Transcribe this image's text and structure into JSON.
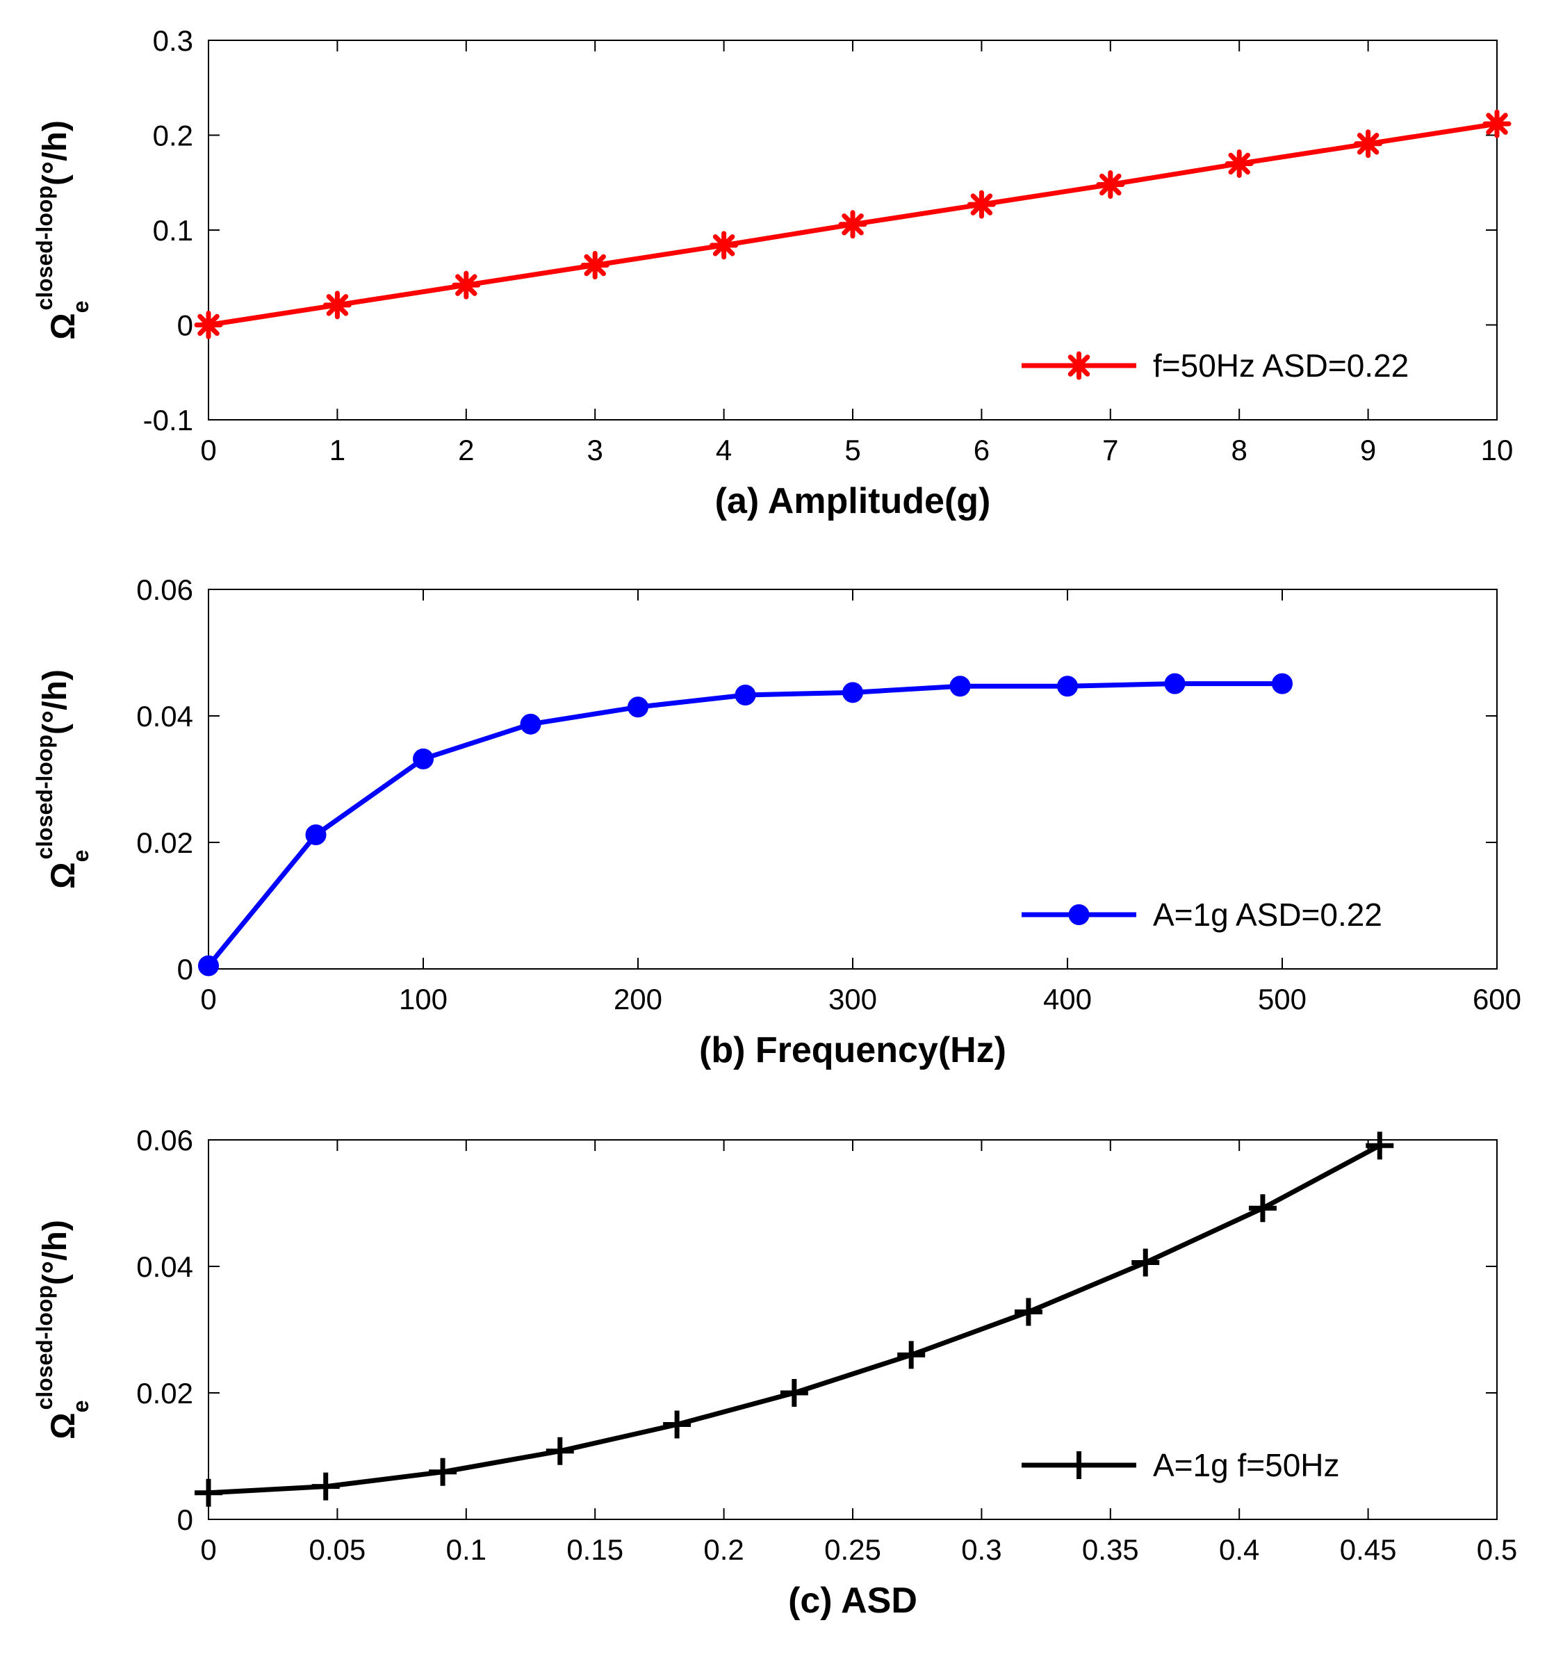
{
  "chart_data": [
    {
      "type": "line",
      "panel": "a",
      "xlabel": "(a) Amplitude(g)",
      "ylabel": {
        "main": "Ω",
        "sub": "e",
        "sup": "closed-loop",
        "unit": "(°/h)"
      },
      "xlim": [
        0,
        10
      ],
      "ylim": [
        -0.1,
        0.3
      ],
      "xticks": [
        0,
        1,
        2,
        3,
        4,
        5,
        6,
        7,
        8,
        9,
        10
      ],
      "xtick_labels": [
        "0",
        "1",
        "2",
        "3",
        "4",
        "5",
        "6",
        "7",
        "8",
        "9",
        "10"
      ],
      "yticks": [
        -0.1,
        0,
        0.1,
        0.2,
        0.3
      ],
      "ytick_labels": [
        "-0.1",
        "0",
        "0.1",
        "0.2",
        "0.3"
      ],
      "legend_position": "lower-right",
      "series": [
        {
          "name": "f=50Hz ASD=0.22",
          "color": "#ff0000",
          "marker": "asterisk",
          "x": [
            0,
            1,
            2,
            3,
            4,
            5,
            6,
            7,
            8,
            9,
            10
          ],
          "y": [
            0.0,
            0.021,
            0.042,
            0.063,
            0.084,
            0.106,
            0.127,
            0.148,
            0.17,
            0.191,
            0.212
          ]
        }
      ]
    },
    {
      "type": "line",
      "panel": "b",
      "xlabel": "(b) Frequency(Hz)",
      "ylabel": {
        "main": "Ω",
        "sub": "e",
        "sup": "closed-loop",
        "unit": "(°/h)"
      },
      "xlim": [
        0,
        600
      ],
      "ylim": [
        0,
        0.06
      ],
      "xticks": [
        0,
        100,
        200,
        300,
        400,
        500,
        600
      ],
      "xtick_labels": [
        "0",
        "100",
        "200",
        "300",
        "400",
        "500",
        "600"
      ],
      "yticks": [
        0,
        0.02,
        0.04,
        0.06
      ],
      "ytick_labels": [
        "0",
        "0.02",
        "0.04",
        "0.06"
      ],
      "legend_position": "lower-right",
      "series": [
        {
          "name": "A=1g ASD=0.22",
          "color": "#0000ff",
          "marker": "circle",
          "x": [
            0,
            50,
            100,
            150,
            200,
            250,
            300,
            350,
            400,
            450,
            500
          ],
          "y": [
            0.0005,
            0.0212,
            0.0332,
            0.0387,
            0.0414,
            0.0433,
            0.0437,
            0.0447,
            0.0447,
            0.0451,
            0.0451
          ]
        }
      ]
    },
    {
      "type": "line",
      "panel": "c",
      "xlabel": "(c) ASD",
      "ylabel": {
        "main": "Ω",
        "sub": "e",
        "sup": "closed-loop",
        "unit": "(°/h)"
      },
      "xlim": [
        0,
        0.5
      ],
      "ylim": [
        0,
        0.06
      ],
      "xticks": [
        0,
        0.05,
        0.1,
        0.15,
        0.2,
        0.25,
        0.3,
        0.35,
        0.4,
        0.45,
        0.5
      ],
      "xtick_labels": [
        "0",
        "0.05",
        "0.1",
        "0.15",
        "0.2",
        "0.25",
        "0.3",
        "0.35",
        "0.4",
        "0.45",
        "0.5"
      ],
      "yticks": [
        0,
        0.02,
        0.04,
        0.06
      ],
      "ytick_labels": [
        "0",
        "0.02",
        "0.04",
        "0.06"
      ],
      "legend_position": "lower-right",
      "series": [
        {
          "name": "A=1g f=50Hz",
          "color": "#000000",
          "marker": "plus",
          "x": [
            0,
            0.0455,
            0.0909,
            0.1364,
            0.1818,
            0.2273,
            0.2727,
            0.3182,
            0.3636,
            0.4091,
            0.4545
          ],
          "y": [
            0.0042,
            0.0052,
            0.0075,
            0.0108,
            0.015,
            0.02,
            0.026,
            0.0328,
            0.0406,
            0.0492,
            0.0591
          ]
        }
      ]
    }
  ]
}
